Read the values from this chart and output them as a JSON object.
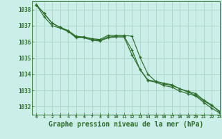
{
  "background_color": "#cceee8",
  "grid_color": "#aad4c8",
  "line_color": "#2d6e2d",
  "xlabel": "Graphe pression niveau de la mer (hPa)",
  "xlabel_fontsize": 7,
  "ylim": [
    1031.5,
    1038.5
  ],
  "xlim": [
    -0.5,
    23
  ],
  "yticks": [
    1032,
    1033,
    1034,
    1035,
    1036,
    1037,
    1038
  ],
  "xticks": [
    0,
    1,
    2,
    3,
    4,
    5,
    6,
    7,
    8,
    9,
    10,
    11,
    12,
    13,
    14,
    15,
    16,
    17,
    18,
    19,
    20,
    21,
    22,
    23
  ],
  "line1_x": [
    0,
    1,
    2,
    3,
    4,
    5,
    6,
    7,
    8,
    9,
    10,
    11,
    12,
    13,
    14,
    15,
    16,
    17,
    18,
    19,
    20,
    21,
    22,
    23
  ],
  "line1_y": [
    1038.3,
    1037.75,
    1037.15,
    1036.9,
    1036.7,
    1036.35,
    1036.3,
    1036.15,
    1036.1,
    1036.3,
    1036.35,
    1036.35,
    1035.5,
    1034.3,
    1033.65,
    1033.55,
    1033.4,
    1033.3,
    1033.1,
    1032.95,
    1032.8,
    1032.4,
    1032.1,
    1031.65
  ],
  "line2_x": [
    0,
    1,
    2,
    3,
    4,
    5,
    6,
    7,
    8,
    9,
    10,
    11,
    12,
    13,
    14,
    15,
    16,
    17,
    18,
    19,
    20,
    21,
    22,
    23
  ],
  "line2_y": [
    1038.3,
    1037.55,
    1037.0,
    1036.85,
    1036.65,
    1036.25,
    1036.3,
    1036.2,
    1036.15,
    1036.4,
    1036.4,
    1036.4,
    1036.35,
    1035.05,
    1034.0,
    1033.55,
    1033.45,
    1033.35,
    1033.1,
    1032.9,
    1032.7,
    1032.35,
    1032.05,
    1031.72
  ],
  "line3_x": [
    0,
    1,
    2,
    3,
    4,
    5,
    6,
    7,
    8,
    9,
    10,
    11,
    12,
    13,
    14,
    15,
    16,
    17,
    18,
    19,
    20,
    21,
    22,
    23
  ],
  "line3_y": [
    1038.3,
    1037.75,
    1037.15,
    1036.9,
    1036.65,
    1036.3,
    1036.25,
    1036.1,
    1036.05,
    1036.25,
    1036.3,
    1036.3,
    1035.2,
    1034.3,
    1033.6,
    1033.5,
    1033.3,
    1033.2,
    1032.95,
    1032.8,
    1032.65,
    1032.25,
    1031.9,
    1031.6
  ]
}
